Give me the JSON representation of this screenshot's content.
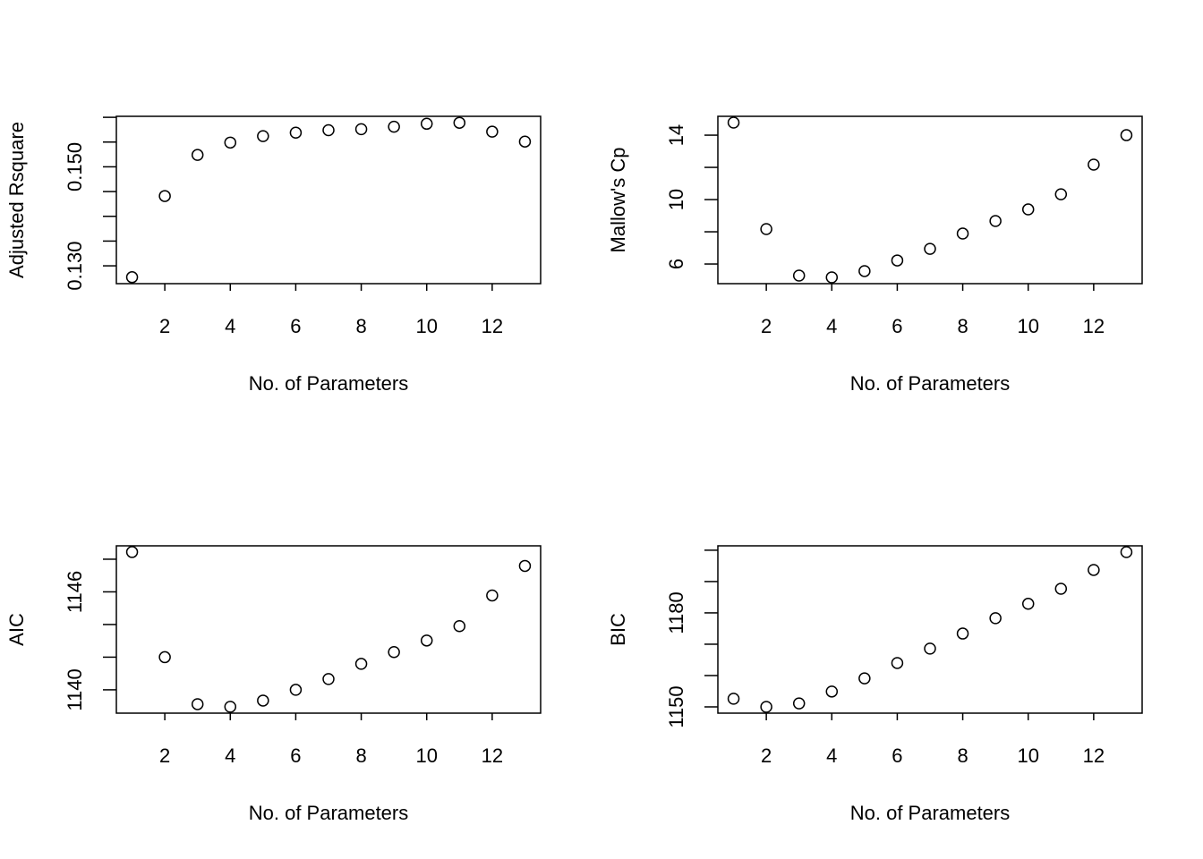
{
  "chart_data": [
    {
      "type": "scatter",
      "x": [
        1,
        2,
        3,
        4,
        5,
        6,
        7,
        8,
        9,
        10,
        11,
        12,
        13
      ],
      "values": [
        0.1277,
        0.1441,
        0.1524,
        0.1549,
        0.1562,
        0.1569,
        0.1574,
        0.1576,
        0.1581,
        0.1587,
        0.1589,
        0.1571,
        0.1551
      ],
      "color": "#000000",
      "x_label": "No. of Parameters",
      "y_label": "Adjusted Rsquare",
      "xlim": [
        0.52,
        13.48
      ],
      "xticks": [
        2,
        4,
        6,
        8,
        10,
        12
      ],
      "ylim": [
        0.1264,
        0.1602
      ],
      "yticks": [
        {
          "value": 0.13,
          "label": "0.130"
        },
        {
          "value": 0.135,
          "label": null
        },
        {
          "value": 0.14,
          "label": null
        },
        {
          "value": 0.145,
          "label": null
        },
        {
          "value": 0.15,
          "label": "0.150"
        },
        {
          "value": 0.155,
          "label": null
        },
        {
          "value": 0.16,
          "label": null
        }
      ]
    },
    {
      "type": "scatter",
      "x": [
        1,
        2,
        3,
        4,
        5,
        6,
        7,
        8,
        9,
        10,
        11,
        12,
        13
      ],
      "values": [
        14.78,
        8.17,
        5.28,
        5.17,
        5.56,
        6.22,
        6.94,
        7.89,
        8.67,
        9.39,
        10.33,
        12.17,
        14.0
      ],
      "color": "#000000",
      "x_label": "No. of Parameters",
      "y_label": "Mallow's Cp",
      "xlim": [
        0.52,
        13.48
      ],
      "xticks": [
        2,
        4,
        6,
        8,
        10,
        12
      ],
      "ylim": [
        4.78,
        15.17
      ],
      "yticks": [
        6,
        {
          "value": 8,
          "label": null
        },
        10,
        {
          "value": 12,
          "label": null
        },
        14
      ]
    },
    {
      "type": "scatter",
      "x": [
        1,
        2,
        3,
        4,
        5,
        6,
        7,
        8,
        9,
        10,
        11,
        12,
        13
      ],
      "values": [
        1148.44,
        1142.0,
        1139.12,
        1138.96,
        1139.34,
        1140.0,
        1140.66,
        1141.59,
        1142.31,
        1143.02,
        1143.9,
        1145.78,
        1147.59
      ],
      "color": "#000000",
      "x_label": "No. of Parameters",
      "y_label": "AIC",
      "xlim": [
        0.52,
        13.48
      ],
      "xticks": [
        2,
        4,
        6,
        8,
        10,
        12
      ],
      "ylim": [
        1138.57,
        1148.82
      ],
      "yticks": [
        1140,
        {
          "value": 1142,
          "label": null
        },
        {
          "value": 1144,
          "label": null
        },
        1146,
        {
          "value": 1148,
          "label": null
        }
      ]
    },
    {
      "type": "scatter",
      "x": [
        1,
        2,
        3,
        4,
        5,
        6,
        7,
        8,
        9,
        10,
        11,
        12,
        13
      ],
      "values": [
        1152.6,
        1150.0,
        1151.1,
        1154.9,
        1159.1,
        1164.0,
        1168.6,
        1173.4,
        1178.3,
        1182.9,
        1187.7,
        1193.7,
        1199.4
      ],
      "color": "#000000",
      "x_label": "No. of Parameters",
      "y_label": "BIC",
      "xlim": [
        0.52,
        13.48
      ],
      "xticks": [
        2,
        4,
        6,
        8,
        10,
        12
      ],
      "ylim": [
        1148,
        1201.4
      ],
      "yticks": [
        1150,
        {
          "value": 1160,
          "label": null
        },
        {
          "value": 1170,
          "label": null
        },
        1180,
        {
          "value": 1190,
          "label": null
        },
        {
          "value": 1200,
          "label": null
        }
      ]
    }
  ]
}
